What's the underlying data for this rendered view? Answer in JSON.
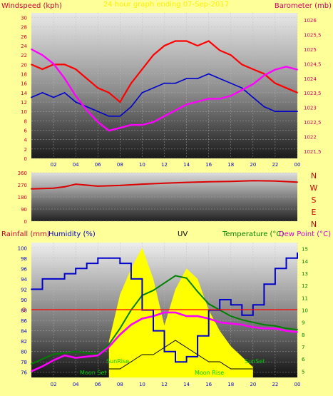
{
  "chart_data": [
    {
      "type": "line",
      "labels": {
        "left": "Windspeed (kph)",
        "right": "Barometer (mb)",
        "center": "24 hour graph ending 07-Sep-2017"
      },
      "y_left_ticks": [
        "0",
        "2",
        "4",
        "6",
        "8",
        "10",
        "12",
        "14",
        "16",
        "18",
        "20",
        "22",
        "24",
        "26",
        "28",
        "30"
      ],
      "y_right_ticks": [
        "1021,5",
        "1022",
        "1022,5",
        "1023",
        "1023,5",
        "1024",
        "1024,5",
        "1025",
        "1025,5",
        "1026"
      ],
      "x_ticks": [
        "02",
        "04",
        "06",
        "08",
        "10",
        "12",
        "14",
        "16",
        "18",
        "20",
        "22",
        "00"
      ],
      "ylim_left": [
        0,
        31
      ],
      "ylim_right": [
        1021.25,
        1026.25
      ],
      "series": [
        {
          "name": "Wind gust",
          "color": "#ff0000",
          "axis": "left",
          "x": [
            0,
            1,
            2,
            3,
            4,
            5,
            6,
            7,
            8,
            9,
            10,
            11,
            12,
            13,
            14,
            15,
            16,
            17,
            18,
            19,
            20,
            21,
            22,
            23,
            24
          ],
          "values": [
            20,
            19,
            20,
            20,
            19,
            17,
            15,
            14,
            12,
            16,
            19,
            22,
            24,
            25,
            25,
            24,
            25,
            23,
            22,
            20,
            19,
            18,
            16,
            15,
            14
          ]
        },
        {
          "name": "Wind average",
          "color": "#0000cc",
          "axis": "left",
          "x": [
            0,
            1,
            2,
            3,
            4,
            5,
            6,
            7,
            8,
            9,
            10,
            11,
            12,
            13,
            14,
            15,
            16,
            17,
            18,
            19,
            20,
            21,
            22,
            23,
            24
          ],
          "values": [
            13,
            14,
            13,
            14,
            12,
            11,
            10,
            9,
            9,
            11,
            14,
            15,
            16,
            16,
            17,
            17,
            18,
            17,
            16,
            15,
            13,
            11,
            10,
            10,
            10
          ]
        },
        {
          "name": "Barometer",
          "color": "#ff00ff",
          "axis": "right",
          "x": [
            0,
            1,
            2,
            3,
            4,
            5,
            6,
            7,
            8,
            9,
            10,
            11,
            12,
            13,
            14,
            15,
            16,
            17,
            18,
            19,
            20,
            21,
            22,
            23,
            24
          ],
          "values": [
            1025.0,
            1024.8,
            1024.5,
            1024.0,
            1023.4,
            1022.9,
            1022.5,
            1022.2,
            1022.3,
            1022.4,
            1022.4,
            1022.5,
            1022.7,
            1022.9,
            1023.1,
            1023.2,
            1023.3,
            1023.3,
            1023.4,
            1023.6,
            1023.8,
            1024.1,
            1024.3,
            1024.4,
            1024.3
          ]
        }
      ]
    },
    {
      "type": "line",
      "labels": {
        "right": [
          "N",
          "W",
          "S",
          "E",
          "N"
        ]
      },
      "y_ticks": [
        "0",
        "90",
        "180",
        "270",
        "360"
      ],
      "ylim": [
        0,
        360
      ],
      "series": [
        {
          "name": "Wind direction",
          "color": "#dd0000",
          "x": [
            0,
            2,
            3,
            4,
            6,
            8,
            10,
            12,
            14,
            16,
            18,
            20,
            22,
            24
          ],
          "values": [
            240,
            245,
            255,
            275,
            260,
            265,
            275,
            282,
            288,
            292,
            295,
            300,
            298,
            290
          ]
        }
      ]
    },
    {
      "type": "line",
      "labels": {
        "rainfall": "Rainfall (mm)",
        "humidity": "Humidity (%)",
        "uv": "UV",
        "temperature": "Temperature (°C)",
        "dewpoint": "Dew Point (°C)",
        "sunrise": "SunRise",
        "sunset": "SunSet",
        "moonset": "Moon Set",
        "moonrise": "Moon Rise",
        "rain_zero": "0"
      },
      "y_humidity_ticks": [
        "76",
        "78",
        "80",
        "82",
        "84",
        "86",
        "88",
        "90",
        "92",
        "94",
        "96",
        "98",
        "100"
      ],
      "y_temp_ticks": [
        "5",
        "6",
        "7",
        "8",
        "9",
        "10",
        "11",
        "12",
        "13",
        "14",
        "15"
      ],
      "x_ticks": [
        "02",
        "04",
        "06",
        "08",
        "10",
        "12",
        "14",
        "16",
        "18",
        "20",
        "22",
        "00"
      ],
      "ylim_humidity": [
        75,
        101
      ],
      "ylim_temperature": [
        4.5,
        15.5
      ],
      "series": [
        {
          "name": "Humidity",
          "color": "#0000cc",
          "x": [
            0,
            1,
            2,
            3,
            4,
            5,
            6,
            7,
            8,
            9,
            10,
            11,
            12,
            13,
            14,
            15,
            16,
            17,
            18,
            19,
            20,
            21,
            22,
            23,
            24
          ],
          "values": [
            92,
            94,
            94,
            95,
            96,
            97,
            98,
            98,
            97,
            94,
            88,
            84,
            80,
            78,
            79,
            83,
            88,
            90,
            89,
            87,
            89,
            93,
            96,
            98,
            99
          ]
        },
        {
          "name": "Temperature",
          "color": "#008000",
          "x": [
            0,
            1,
            2,
            3,
            4,
            5,
            6,
            7,
            8,
            9,
            10,
            11,
            12,
            13,
            14,
            15,
            16,
            17,
            18,
            19,
            20,
            21,
            22,
            23,
            24
          ],
          "values": [
            5.6,
            6.0,
            6.4,
            6.5,
            6.6,
            6.5,
            6.4,
            7.2,
            8.5,
            10.0,
            11.2,
            11.6,
            12.2,
            12.8,
            12.6,
            11.5,
            10.5,
            10.0,
            9.5,
            9.2,
            9.0,
            8.8,
            8.7,
            8.5,
            8.4
          ]
        },
        {
          "name": "Dew Point",
          "color": "#ff00ff",
          "x": [
            0,
            1,
            2,
            3,
            4,
            5,
            6,
            7,
            8,
            9,
            10,
            11,
            12,
            13,
            14,
            15,
            16,
            17,
            18,
            19,
            20,
            21,
            22,
            23,
            24
          ],
          "values": [
            5.0,
            5.4,
            5.9,
            6.3,
            6.1,
            6.2,
            6.3,
            7.0,
            8.0,
            8.8,
            9.3,
            9.5,
            9.8,
            9.8,
            9.5,
            9.5,
            9.3,
            9.0,
            8.9,
            8.8,
            8.6,
            8.5,
            8.5,
            8.3,
            8.2
          ]
        },
        {
          "name": "UV",
          "color": "#ffff00",
          "x": [
            7,
            8,
            9,
            10,
            11,
            12,
            13,
            14,
            15,
            16,
            17,
            18,
            19,
            20
          ],
          "values": [
            82,
            91,
            96,
            100,
            94,
            85,
            92,
            96,
            94,
            88,
            84,
            81,
            79,
            77
          ]
        },
        {
          "name": "UV line",
          "color": "#000000",
          "x": [
            7,
            8,
            9,
            10,
            11,
            12,
            13,
            14,
            15,
            16,
            17,
            18,
            19,
            20
          ],
          "values": [
            0,
            0,
            1,
            2,
            2,
            3,
            4,
            3,
            2,
            1,
            1,
            0,
            0,
            0
          ]
        }
      ]
    }
  ]
}
